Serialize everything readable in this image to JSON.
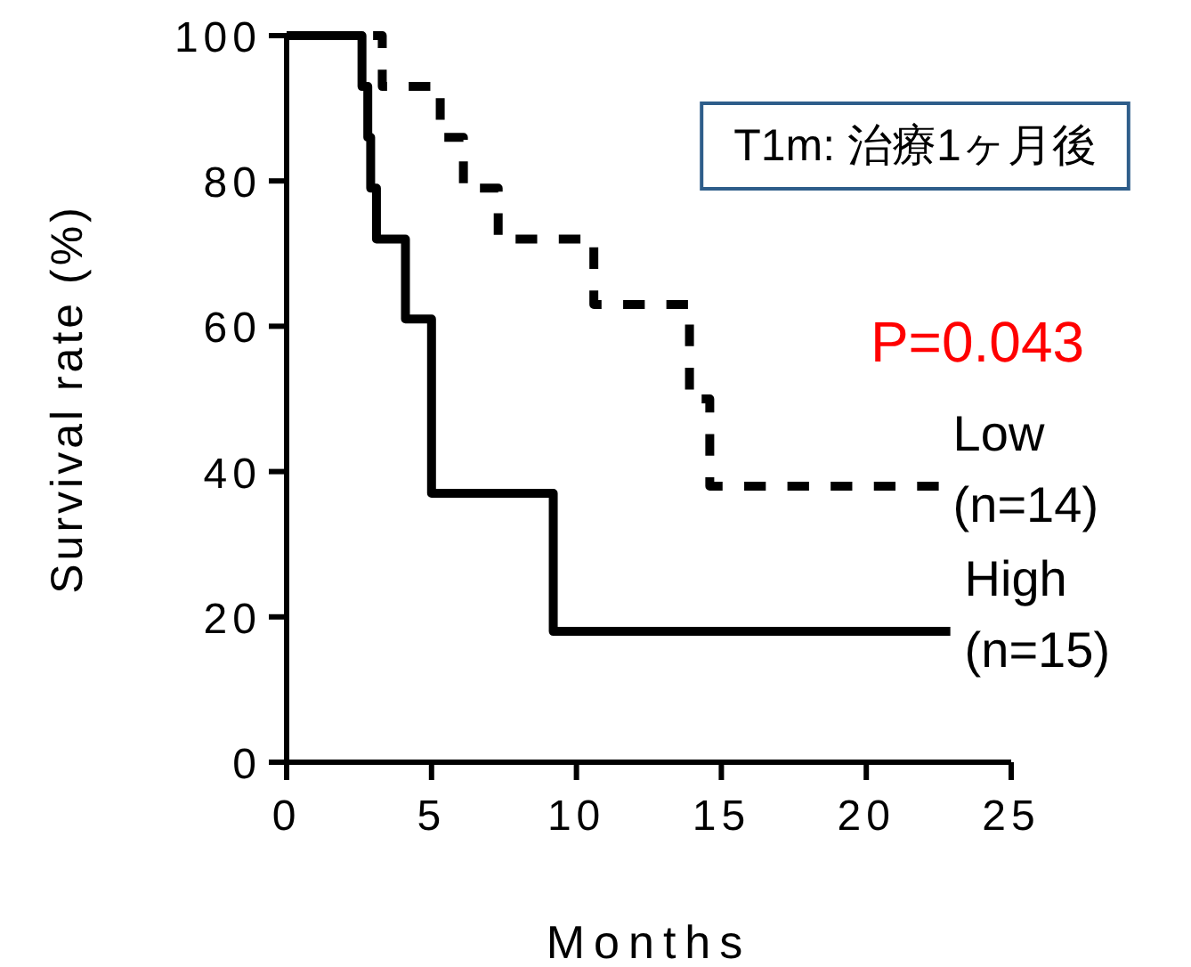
{
  "chart_data": {
    "type": "step",
    "xlabel": "Months",
    "ylabel": "Survival rate (%)",
    "xlim": [
      0,
      25
    ],
    "xticks": [
      0,
      5,
      10,
      15,
      20,
      25
    ],
    "ylim": [
      0,
      100
    ],
    "yticks": [
      0,
      20,
      40,
      60,
      80,
      100
    ],
    "series": [
      {
        "name": "Low (n=14)",
        "color": "#000000",
        "line_style": "dashed",
        "x": [
          0,
          3.3,
          5.3,
          6.1,
          7.3,
          10.6,
          13.9,
          14.6,
          22.5
        ],
        "values": [
          100,
          93,
          86,
          79,
          72,
          63,
          50,
          38,
          38
        ]
      },
      {
        "name": "High (n=15)",
        "color": "#000000",
        "line_style": "solid",
        "x": [
          0,
          2.6,
          2.8,
          2.9,
          3.1,
          4.1,
          5.0,
          9.2,
          22.9
        ],
        "values": [
          100,
          93,
          86,
          79,
          72,
          61,
          37,
          18,
          18
        ]
      }
    ],
    "annotations": [
      "T1m: 治療1ヶ月後",
      "P=0.043"
    ],
    "grid": false
  }
}
